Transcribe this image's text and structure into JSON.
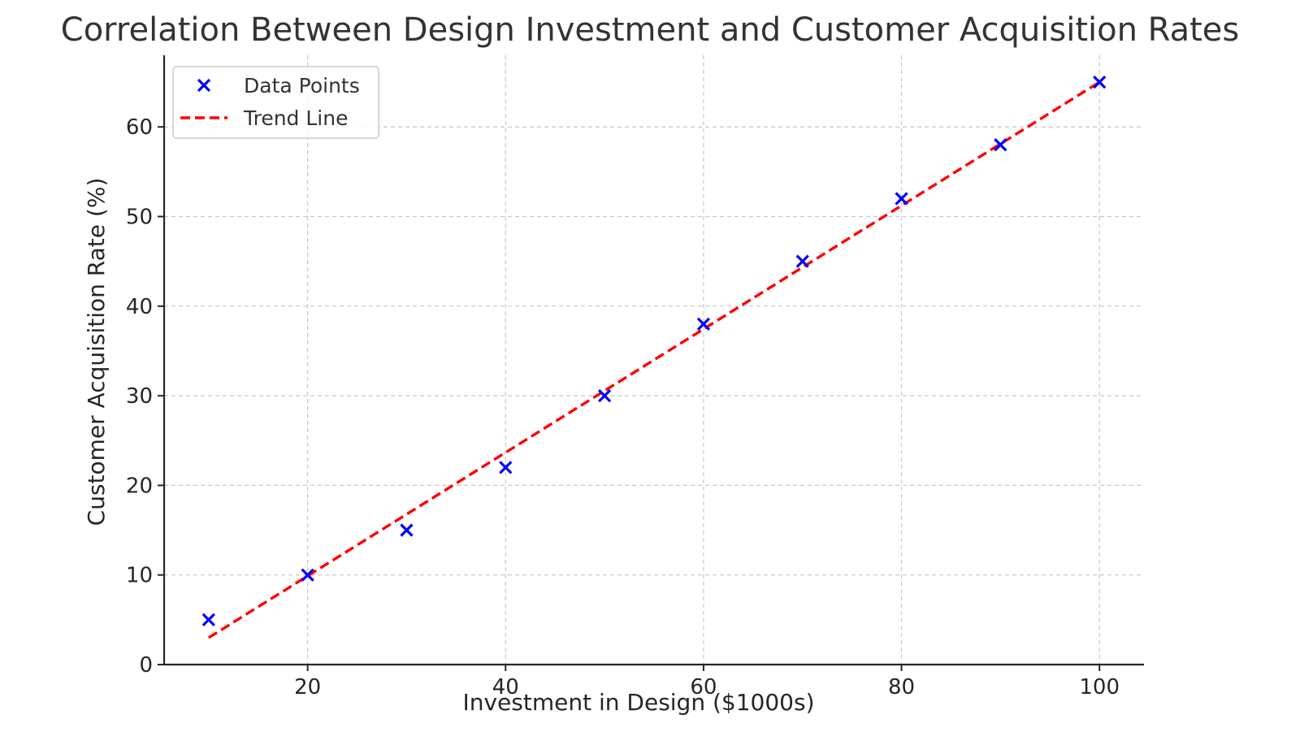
{
  "chart_data": {
    "type": "scatter",
    "title": "Correlation Between Design Investment and Customer Acquisition Rates",
    "xlabel": "Investment in Design ($1000s)",
    "ylabel": "Customer Acquisition Rate (%)",
    "xlim": [
      5.5,
      104.5
    ],
    "ylim": [
      0,
      68
    ],
    "xticks": [
      20,
      40,
      60,
      80,
      100
    ],
    "yticks": [
      0,
      10,
      20,
      30,
      40,
      50,
      60
    ],
    "grid": true,
    "legend_position": "top-left",
    "series": [
      {
        "name": "Data Points",
        "kind": "scatter",
        "marker": "x",
        "color": "#0000ff",
        "x": [
          10,
          20,
          30,
          40,
          50,
          60,
          70,
          80,
          90,
          100
        ],
        "y": [
          5,
          10,
          15,
          22,
          30,
          38,
          45,
          52,
          58,
          65
        ]
      },
      {
        "name": "Trend Line",
        "kind": "line",
        "style": "dashed",
        "color": "#ff0000",
        "x": [
          10,
          100
        ],
        "y": [
          3,
          65
        ]
      }
    ]
  }
}
